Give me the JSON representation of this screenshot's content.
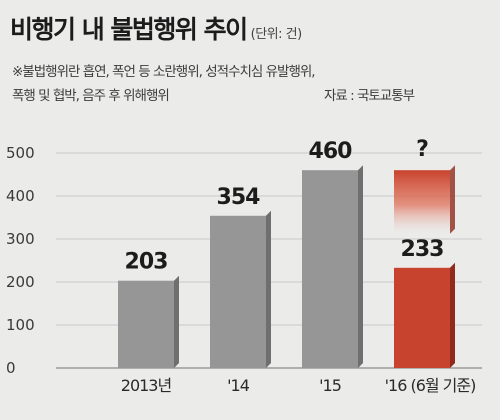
{
  "title": "비행기 내 불법행위 추이",
  "unit": "(단위: 건)",
  "note_line1": "※불법행위란 흡연, 폭언 등 소란행위, 성적수치심 유발행위,",
  "note_line2": "폭행 및 협박, 음주 후 위해행위",
  "source": "자료 : 국토교통부",
  "colors": {
    "gray": "#969696",
    "red": "#c8432d",
    "red_light": "#e0735c"
  },
  "chart_data": {
    "type": "bar",
    "categories": [
      "2013년",
      "'14",
      "'15",
      "'16 (6월 기준)"
    ],
    "values": [
      203,
      354,
      460,
      233
    ],
    "value_labels": [
      "203",
      "354",
      "460",
      "233"
    ],
    "projection_label": "?",
    "ylim": [
      0,
      500
    ],
    "yticks": [
      "0",
      "100",
      "200",
      "300",
      "400",
      "500"
    ],
    "grid": true
  }
}
